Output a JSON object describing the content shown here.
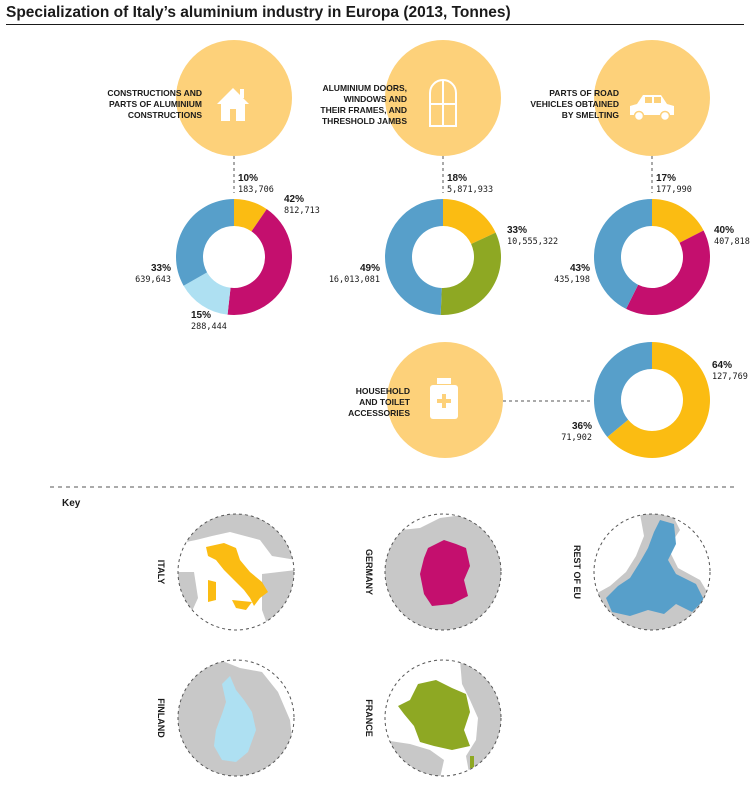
{
  "title": "Specialization of Italy’s aluminium industry in Europa (2013, Tonnes)",
  "key_label": "Key",
  "colors": {
    "Italy": "#fbbc12",
    "Germany": "#c40f6e",
    "Rest of EU": "#579fca",
    "Finland": "#aee0f2",
    "France": "#8ea823",
    "category_circle": "#fdd17a",
    "map_land": "#c8c8c8"
  },
  "key": [
    {
      "label": "ITALY",
      "color_ref": "Italy"
    },
    {
      "label": "GERMANY",
      "color_ref": "Germany"
    },
    {
      "label": "REST OF EU",
      "color_ref": "Rest of EU"
    },
    {
      "label": "FINLAND",
      "color_ref": "Finland"
    },
    {
      "label": "FRANCE",
      "color_ref": "France"
    }
  ],
  "chart_data": [
    {
      "type": "pie",
      "category": [
        "CONSTRUCTIONS AND",
        "PARTS OF ALUMINIUM",
        "CONSTRUCTIONS"
      ],
      "icon": "house-icon",
      "slices": [
        {
          "label": "Italy",
          "percent": "10%",
          "value": "183,706"
        },
        {
          "label": "Germany",
          "percent": "42%",
          "value": "812,713"
        },
        {
          "label": "Finland",
          "percent": "15%",
          "value": "288,444"
        },
        {
          "label": "Rest of EU",
          "percent": "33%",
          "value": "639,643"
        }
      ]
    },
    {
      "type": "pie",
      "category": [
        "ALUMINIUM DOORS,",
        "WINDOWS AND",
        "THEIR FRAMES, AND",
        "THRESHOLD JAMBS"
      ],
      "icon": "window-icon",
      "slices": [
        {
          "label": "Italy",
          "percent": "18%",
          "value": "5,871,933"
        },
        {
          "label": "France",
          "percent": "33%",
          "value": "10,555,322"
        },
        {
          "label": "Rest of EU",
          "percent": "49%",
          "value": "16,013,081"
        }
      ]
    },
    {
      "type": "pie",
      "category": [
        "PARTS OF ROAD",
        "VEHICLES OBTAINED",
        "BY SMELTING"
      ],
      "icon": "car-icon",
      "slices": [
        {
          "label": "Italy",
          "percent": "17%",
          "value": "177,990"
        },
        {
          "label": "Germany",
          "percent": "40%",
          "value": "407,818"
        },
        {
          "label": "Rest of EU",
          "percent": "43%",
          "value": "435,198"
        }
      ]
    },
    {
      "type": "pie",
      "category": [
        "HOUSEHOLD",
        "AND TOILET",
        "ACCESSORIES"
      ],
      "icon": "bottle-icon",
      "slices": [
        {
          "label": "Italy",
          "percent": "64%",
          "value": "127,769"
        },
        {
          "label": "Rest of EU",
          "percent": "36%",
          "value": "71,902"
        }
      ]
    }
  ]
}
